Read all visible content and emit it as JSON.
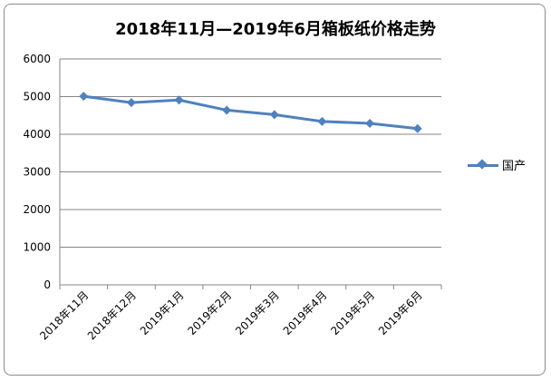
{
  "chart_data": {
    "type": "line",
    "title": "2018年11月—2019年6月箱板纸价格走势",
    "categories": [
      "2018年11月",
      "2018年12月",
      "2019年1月",
      "2019年2月",
      "2019年3月",
      "2019年4月",
      "2019年5月",
      "2019年6月"
    ],
    "series": [
      {
        "name": "国产",
        "values": [
          5010,
          4840,
          4910,
          4640,
          4520,
          4340,
          4290,
          4150
        ],
        "color": "#4f81bd"
      }
    ],
    "ylim": [
      0,
      6000
    ],
    "yticks": [
      0,
      1000,
      2000,
      3000,
      4000,
      5000,
      6000
    ],
    "grid": true,
    "legend": "right"
  }
}
